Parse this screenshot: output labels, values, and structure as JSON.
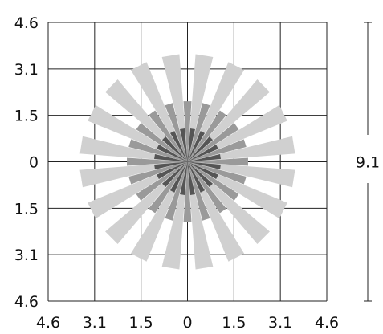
{
  "axes": {
    "y_ticks": [
      "4.6",
      "3.1",
      "1.5",
      "0",
      "1.5",
      "3.1",
      "4.6"
    ],
    "x_ticks": [
      "4.6",
      "3.1",
      "1.5",
      "0",
      "1.5",
      "3.1",
      "4.6"
    ]
  },
  "dimension": {
    "label": "9.1"
  },
  "colors": {
    "outer_ray": "#d0d0d0",
    "middle_ray": "#9a9a9a",
    "inner_ray": "#555555",
    "grid": "#222222",
    "text": "#111111"
  },
  "rays": {
    "count": 20,
    "outer_length": 3.55,
    "middle_length": 2.0,
    "inner_length": 1.1
  }
}
